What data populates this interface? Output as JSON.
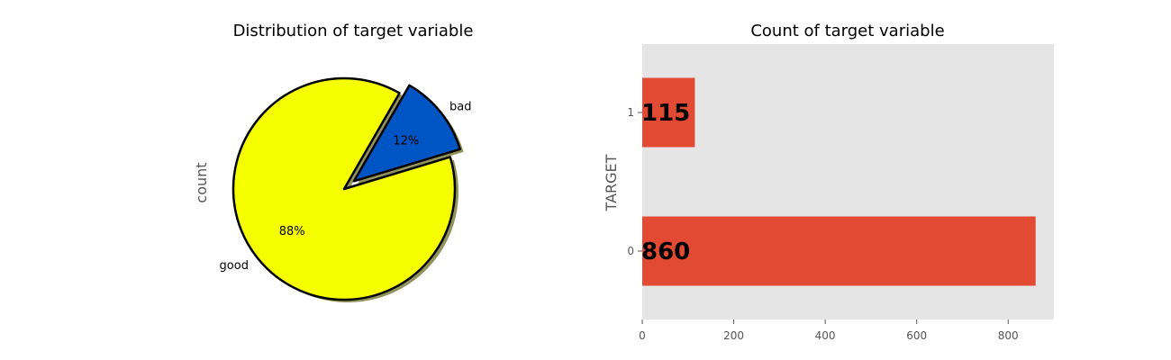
{
  "chart_data": [
    {
      "type": "pie",
      "title": "Distribution of target variable",
      "ylabel": "count",
      "slices": [
        {
          "label": "good",
          "value": 0.88,
          "pct_label": "88%",
          "color": "#f5ff00",
          "explode": false
        },
        {
          "label": "bad",
          "value": 0.12,
          "pct_label": "12%",
          "color": "#0055c4",
          "explode": true
        }
      ],
      "shadow": true
    },
    {
      "type": "bar",
      "orientation": "horizontal",
      "title": "Count of target variable",
      "ylabel": "TARGET",
      "xlabel": "",
      "categories": [
        "0",
        "1"
      ],
      "values": [
        860,
        115
      ],
      "data_labels": [
        "860",
        "115"
      ],
      "bar_color": "#e24a33",
      "background": "#e5e5e5",
      "xlim": [
        0,
        900
      ],
      "xticks": [
        "0",
        "200",
        "400",
        "600",
        "800"
      ]
    }
  ]
}
